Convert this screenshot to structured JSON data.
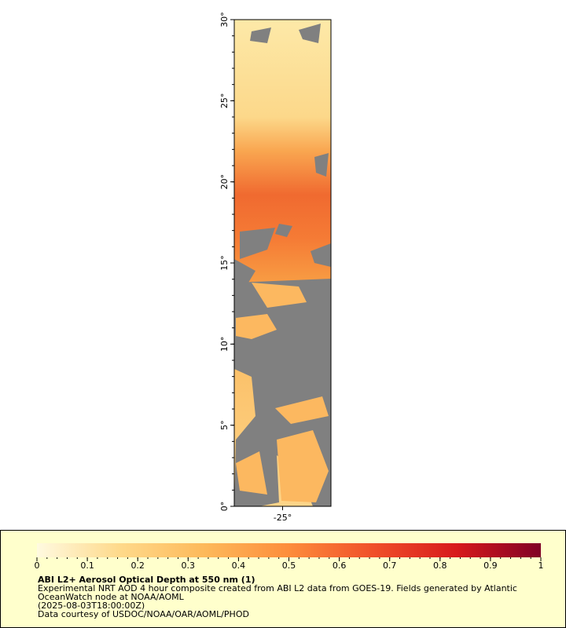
{
  "map": {
    "latlim": [
      0,
      30
    ],
    "lonlim": [
      -28,
      -22
    ],
    "lat_ticks": [
      {
        "value": 0,
        "label": "0°"
      },
      {
        "value": 5,
        "label": "5°"
      },
      {
        "value": 10,
        "label": "10°"
      },
      {
        "value": 15,
        "label": "15°"
      },
      {
        "value": 20,
        "label": "20°"
      },
      {
        "value": 25,
        "label": "25°"
      },
      {
        "value": 30,
        "label": "30°"
      }
    ],
    "lon_ticks": [
      {
        "value": -25,
        "label": "-25°"
      }
    ]
  },
  "colorbar": {
    "range": [
      0,
      1
    ],
    "ticks": [
      0,
      0.1,
      0.2,
      0.3,
      0.4,
      0.5,
      0.6,
      0.7,
      0.8,
      0.9,
      1
    ],
    "colors": [
      "#fffae0",
      "#fed98a",
      "#fdb95a",
      "#fd8d3c",
      "#f0502a",
      "#d7191c",
      "#800026"
    ]
  },
  "legend": {
    "title": "ABI L2+ Aerosol Optical Depth at 550 nm (1)",
    "lines": [
      "Experimental NRT AOD 4 hour composite created from ABI L2 data from GOES-19. Fields generated by Atlantic",
      "OceanWatch node at NOAA/AOML",
      "(2025-08-03T18:00:00Z)",
      "Data courtesy of USDOC/NOAA/OAR/AOML/PHOD"
    ]
  }
}
